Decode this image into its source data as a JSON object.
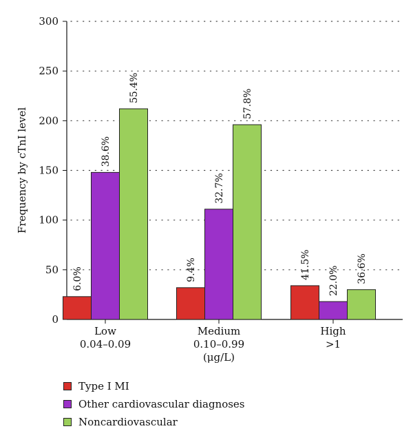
{
  "chart_data": {
    "type": "bar",
    "categories": [
      [
        "Low",
        "0.04–0.09"
      ],
      [
        "Medium",
        "0.10–0.99",
        "(μg/L)"
      ],
      [
        "High",
        ">1"
      ]
    ],
    "series": [
      {
        "name": "Type I MI",
        "color": "#d9302b",
        "values": [
          23,
          32,
          34
        ],
        "labels": [
          "6.0%",
          "9.4%",
          "41.5%"
        ]
      },
      {
        "name": "Other cardiovascular diagnoses",
        "color": "#9b31c9",
        "values": [
          148,
          111,
          18
        ],
        "labels": [
          "38.6%",
          "32.7%",
          "22.0%"
        ]
      },
      {
        "name": "Noncardiovascular",
        "color": "#9bcf5b",
        "values": [
          212,
          196,
          30
        ],
        "labels": [
          "55.4%",
          "57.8%",
          "36.6%"
        ]
      }
    ],
    "ylabel": "Frequency by cTnI level",
    "xlabel": "",
    "ylim": [
      0,
      300
    ],
    "yticks": [
      0,
      50,
      100,
      150,
      200,
      250,
      300
    ],
    "grid": "horizontal dotted",
    "legend_position": "bottom-left"
  }
}
